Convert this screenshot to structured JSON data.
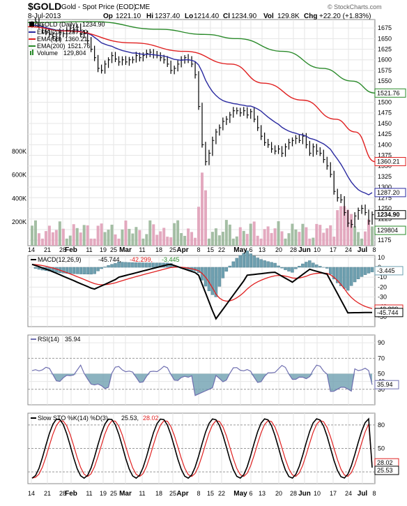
{
  "header": {
    "symbol": "$GOLD",
    "name": "Gold - Spot Price (EOD)",
    "exchange": "CME",
    "date": "8-Jul-2013",
    "open_label": "Op",
    "open": "1221.10",
    "high_label": "Hi",
    "high": "1237.40",
    "low_label": "Lo",
    "low": "1214.40",
    "close_label": "Cl",
    "close": "1234.90",
    "vol_label": "Vol",
    "vol": "129.8K",
    "chg_label": "Chg",
    "chg": "+22.20 (+1.83%)",
    "watermark": "© StockCharts.com"
  },
  "colors": {
    "ema20": "#2a2aa0",
    "ema50": "#e02020",
    "ema200": "#2a8a2a",
    "price": "#000000",
    "vol_up": "#9ab79a",
    "vol_down": "#e0a0b8",
    "macd": "#000000",
    "signal": "#e02020",
    "hist": "#6fa0b0"
  },
  "legend": [
    {
      "label": "$GOLD (Daily)",
      "value": "1234.90",
      "color": "#000000"
    },
    {
      "label": "EMA(20)",
      "value": "1287.20",
      "color": "#2a2aa0"
    },
    {
      "label": "EMA(50)",
      "value": "1360.21",
      "color": "#e02020"
    },
    {
      "label": "EMA(200)",
      "value": "1521.76",
      "color": "#2a8a2a"
    },
    {
      "label": "Volume",
      "value": "129,804",
      "color": "#2a8a2a"
    }
  ],
  "panels": {
    "macd": {
      "label": "MACD(12,26,9)",
      "v1": "-45.744,",
      "v2": "-42.299,",
      "v3": "-3.445"
    },
    "rsi": {
      "label": "RSI(14)",
      "v1": "35.94"
    },
    "sto": {
      "label": "Slow STO %K(14) %D(3)",
      "v1": "25.53,",
      "v2": "28.02"
    }
  },
  "chart_data": {
    "type": "line",
    "x": [
      "14",
      "21",
      "28",
      "Feb",
      "11",
      "19",
      "25",
      "Mar",
      "11",
      "18",
      "25",
      "Apr",
      "8",
      "15",
      "22",
      "May",
      "6",
      "13",
      "20",
      "28",
      "Jun",
      "10",
      "17",
      "24",
      "Jul",
      "8"
    ],
    "price": {
      "ylim": [
        1162,
        1695
      ],
      "ticks": [
        1175,
        1200,
        1225,
        1250,
        1275,
        1300,
        1325,
        1350,
        1375,
        1400,
        1425,
        1450,
        1475,
        1500,
        1525,
        1550,
        1575,
        1600,
        1625,
        1650,
        1675
      ],
      "close": [
        1685,
        1690,
        1680,
        1670,
        1666,
        1660,
        1655,
        1650,
        1665,
        1662,
        1670,
        1675,
        1672,
        1677,
        1660,
        1662,
        1645,
        1625,
        1605,
        1580,
        1575,
        1590,
        1600,
        1610,
        1602,
        1595,
        1600,
        1595,
        1600,
        1600,
        1610,
        1605,
        1610,
        1615,
        1618,
        1612,
        1610,
        1605,
        1600,
        1590,
        1575,
        1580,
        1590,
        1600,
        1605,
        1600,
        1590,
        1565,
        1490,
        1400,
        1360,
        1380,
        1410,
        1430,
        1440,
        1455,
        1460,
        1470,
        1480,
        1480,
        1475,
        1480,
        1470,
        1478,
        1460,
        1440,
        1420,
        1405,
        1400,
        1390,
        1385,
        1390,
        1380,
        1395,
        1405,
        1410,
        1415,
        1410,
        1420,
        1400,
        1380,
        1395,
        1385,
        1380,
        1365,
        1350,
        1330,
        1290,
        1275,
        1270,
        1240,
        1215,
        1212,
        1232,
        1245,
        1250,
        1240,
        1220,
        1235
      ],
      "ema20": [
        1682,
        1681,
        1680,
        1678,
        1676,
        1674,
        1672,
        1670,
        1670,
        1669,
        1668,
        1668,
        1668,
        1668,
        1667,
        1665,
        1662,
        1659,
        1653,
        1647,
        1640,
        1637,
        1634,
        1632,
        1628,
        1625,
        1622,
        1620,
        1618,
        1616,
        1616,
        1614,
        1613,
        1613,
        1613,
        1612,
        1611,
        1610,
        1609,
        1607,
        1604,
        1601,
        1600,
        1599,
        1600,
        1600,
        1599,
        1596,
        1588,
        1572,
        1552,
        1537,
        1525,
        1516,
        1509,
        1504,
        1501,
        1499,
        1497,
        1496,
        1494,
        1493,
        1491,
        1491,
        1488,
        1484,
        1479,
        1472,
        1465,
        1459,
        1453,
        1448,
        1441,
        1436,
        1432,
        1429,
        1427,
        1424,
        1423,
        1420,
        1415,
        1413,
        1410,
        1406,
        1402,
        1396,
        1389,
        1377,
        1366,
        1354,
        1340,
        1325,
        1312,
        1302,
        1294,
        1289,
        1286,
        1282,
        1287
      ]
    },
    "ema50": [
      [
        0,
        1678
      ],
      [
        60,
        1668
      ],
      [
        160,
        1640
      ],
      [
        240,
        1620
      ],
      [
        310,
        1590
      ],
      [
        360,
        1545
      ],
      [
        420,
        1505
      ],
      [
        470,
        1460
      ],
      [
        500,
        1430
      ],
      [
        530,
        1360
      ]
    ],
    "ema200": [
      [
        0,
        1688
      ],
      [
        100,
        1690
      ],
      [
        200,
        1672
      ],
      [
        270,
        1660
      ],
      [
        320,
        1650
      ],
      [
        390,
        1620
      ],
      [
        450,
        1580
      ],
      [
        495,
        1550
      ],
      [
        530,
        1521.76
      ]
    ],
    "volume": {
      "ticks": [
        200,
        400,
        600,
        800
      ],
      "unit": "K"
    },
    "macd": {
      "ylim": [
        -60,
        12
      ],
      "ticks": [
        10,
        0,
        -10,
        -20,
        -30,
        -40,
        -50
      ]
    },
    "rsi": {
      "ylim": [
        10,
        100
      ],
      "ticks": [
        90,
        70,
        50,
        40,
        30
      ]
    },
    "sto": {
      "ylim": [
        5,
        95
      ],
      "ticks": [
        80,
        50,
        20
      ]
    }
  }
}
